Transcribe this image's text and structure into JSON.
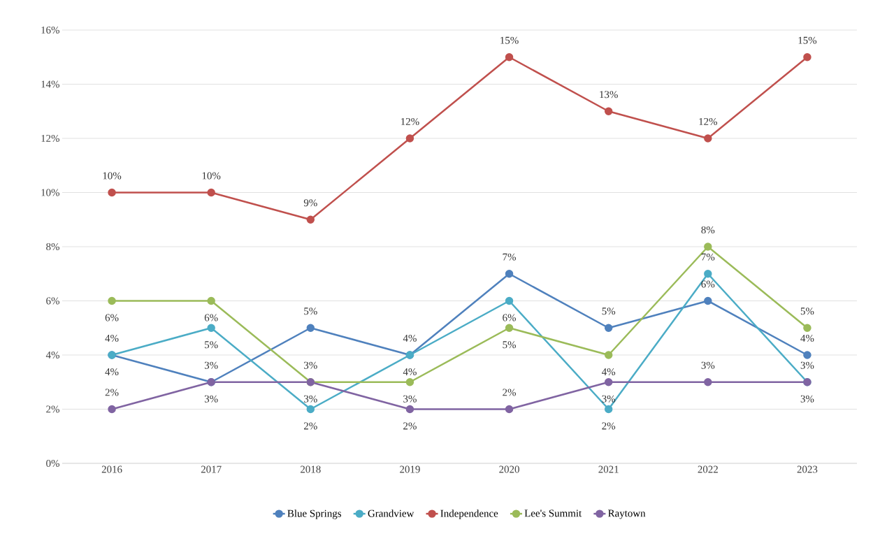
{
  "chart_data": {
    "type": "line",
    "categories": [
      "2016",
      "2017",
      "2018",
      "2019",
      "2020",
      "2021",
      "2022",
      "2023"
    ],
    "series": [
      {
        "name": "Blue Springs",
        "color": "#4f81bd",
        "values": [
          4,
          3,
          5,
          4,
          7,
          5,
          6,
          4
        ],
        "value_labels": [
          "4%",
          "3%",
          "5%",
          "4%",
          "7%",
          "5%",
          "6%",
          "4%"
        ]
      },
      {
        "name": "Grandview",
        "color": "#4bacc6",
        "values": [
          4,
          5,
          2,
          4,
          6,
          2,
          7,
          3
        ],
        "value_labels": [
          "4%",
          "5%",
          "2%",
          "4%",
          "6%",
          "2%",
          "7%",
          "3%"
        ]
      },
      {
        "name": "Independence",
        "color": "#c0504d",
        "values": [
          10,
          10,
          9,
          12,
          15,
          13,
          12,
          15
        ],
        "value_labels": [
          "10%",
          "10%",
          "9%",
          "12%",
          "15%",
          "13%",
          "12%",
          "15%"
        ]
      },
      {
        "name": "Lee's Summit",
        "color": "#9bbb59",
        "values": [
          6,
          6,
          3,
          3,
          5,
          4,
          8,
          5
        ],
        "value_labels": [
          "6%",
          "6%",
          "3%",
          "3%",
          "5%",
          "4%",
          "8%",
          "5%"
        ]
      },
      {
        "name": "Raytown",
        "color": "#8064a2",
        "values": [
          2,
          3,
          3,
          2,
          2,
          3,
          3,
          3
        ],
        "value_labels": [
          "2%",
          "3%",
          "3%",
          "2%",
          "2%",
          "3%",
          "3%",
          "3%"
        ]
      }
    ],
    "ylim": [
      0,
      16
    ],
    "yticks": [
      {
        "value": 0,
        "label": "0%"
      },
      {
        "value": 2,
        "label": "2%"
      },
      {
        "value": 4,
        "label": "4%"
      },
      {
        "value": 6,
        "label": "6%"
      },
      {
        "value": 8,
        "label": "8%"
      },
      {
        "value": 10,
        "label": "10%"
      },
      {
        "value": 12,
        "label": "12%"
      },
      {
        "value": 14,
        "label": "14%"
      },
      {
        "value": 16,
        "label": "16%"
      }
    ],
    "grid": "y",
    "legend": "bottom",
    "marker": "circle",
    "line_style": "solid"
  }
}
